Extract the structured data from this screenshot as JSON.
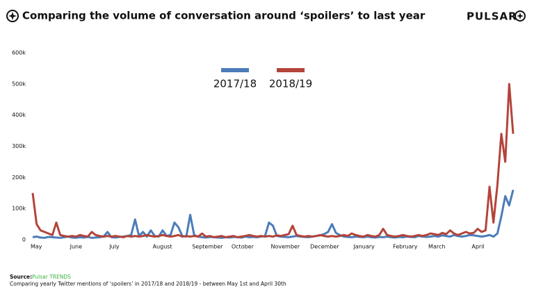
{
  "chart_data": {
    "type": "line",
    "title": "Comparing the volume of conversation around ‘spoilers’ to last year",
    "brand": "PULSAR",
    "source_label": "Source:",
    "source": "Pulsar TRENDS",
    "caption": "Comparing yearly Twitter mentions of ‘spoilers’ in 2017/18 and 2018/19 - between May 1st and April 30th",
    "categories": [
      "May",
      null,
      null,
      null,
      null,
      null,
      null,
      null,
      null,
      null,
      "June",
      null,
      null,
      null,
      null,
      null,
      null,
      null,
      null,
      null,
      "July",
      null,
      null,
      null,
      null,
      null,
      null,
      null,
      null,
      null,
      null,
      "August",
      null,
      null,
      null,
      null,
      null,
      null,
      null,
      null,
      null,
      "September",
      null,
      null,
      null,
      null,
      null,
      null,
      null,
      null,
      null,
      "October",
      null,
      null,
      null,
      null,
      null,
      null,
      null,
      null,
      null,
      "November",
      null,
      null,
      null,
      null,
      null,
      null,
      null,
      null,
      null,
      "December",
      null,
      null,
      null,
      null,
      null,
      null,
      null,
      null,
      null,
      null,
      "January",
      null,
      null,
      null,
      null,
      null,
      null,
      null,
      null,
      null,
      "February",
      null,
      null,
      null,
      null,
      null,
      null,
      null,
      null,
      "March",
      null,
      null,
      null,
      null,
      null,
      null,
      null,
      null,
      null,
      null,
      "April",
      null,
      null,
      null,
      null,
      null,
      null,
      null,
      null,
      null,
      null
    ],
    "series": [
      {
        "name": "2017/18",
        "color": "#4a7cb8",
        "values": [
          8000,
          10000,
          7000,
          6000,
          9000,
          8000,
          7000,
          6000,
          8000,
          10000,
          7000,
          6000,
          8000,
          7000,
          9000,
          6000,
          7000,
          8000,
          10000,
          25000,
          8000,
          7000,
          9000,
          10000,
          12000,
          15000,
          65000,
          12000,
          25000,
          10000,
          30000,
          12000,
          10000,
          30000,
          12000,
          15000,
          55000,
          40000,
          12000,
          10000,
          80000,
          15000,
          10000,
          8000,
          7000,
          9000,
          8000,
          7000,
          6000,
          8000,
          7000,
          9000,
          8000,
          7000,
          10000,
          8000,
          9000,
          8000,
          10000,
          12000,
          55000,
          45000,
          12000,
          10000,
          9000,
          8000,
          10000,
          12000,
          10000,
          9000,
          8000,
          10000,
          12000,
          14000,
          18000,
          25000,
          50000,
          22000,
          15000,
          10000,
          9000,
          8000,
          10000,
          9000,
          8000,
          10000,
          8000,
          7000,
          9000,
          8000,
          10000,
          8000,
          7000,
          9000,
          8000,
          10000,
          9000,
          8000,
          12000,
          10000,
          9000,
          10000,
          12000,
          10000,
          14000,
          12000,
          10000,
          15000,
          12000,
          10000,
          12000,
          15000,
          14000,
          12000,
          10000,
          12000,
          15000,
          10000,
          20000,
          75000,
          140000,
          110000,
          160000
        ]
      },
      {
        "name": "2018/19",
        "color": "#b3443a",
        "values": [
          150000,
          50000,
          30000,
          25000,
          20000,
          15000,
          55000,
          15000,
          12000,
          10000,
          12000,
          10000,
          15000,
          12000,
          10000,
          25000,
          15000,
          12000,
          10000,
          12000,
          10000,
          12000,
          10000,
          8000,
          12000,
          10000,
          12000,
          10000,
          12000,
          15000,
          12000,
          10000,
          12000,
          15000,
          12000,
          10000,
          12000,
          15000,
          10000,
          12000,
          10000,
          12000,
          10000,
          20000,
          10000,
          12000,
          8000,
          10000,
          12000,
          8000,
          10000,
          12000,
          8000,
          10000,
          12000,
          15000,
          12000,
          10000,
          12000,
          10000,
          12000,
          10000,
          14000,
          12000,
          15000,
          18000,
          45000,
          15000,
          12000,
          10000,
          12000,
          10000,
          12000,
          15000,
          12000,
          10000,
          12000,
          10000,
          12000,
          15000,
          12000,
          20000,
          15000,
          12000,
          10000,
          15000,
          12000,
          10000,
          15000,
          35000,
          15000,
          12000,
          10000,
          12000,
          15000,
          12000,
          10000,
          12000,
          15000,
          12000,
          15000,
          20000,
          18000,
          15000,
          22000,
          18000,
          30000,
          20000,
          15000,
          20000,
          25000,
          20000,
          22000,
          35000,
          25000,
          30000,
          170000,
          55000,
          175000,
          340000,
          250000,
          500000,
          340000
        ]
      }
    ],
    "ylim": [
      0,
      600000
    ],
    "yticks": [
      0,
      {
        "value": 100000,
        "label": "100k"
      },
      {
        "value": 200000,
        "label": "200k"
      },
      {
        "value": 300000,
        "label": "300k"
      },
      {
        "value": 400000,
        "label": "400k"
      },
      {
        "value": 500000,
        "label": "500k"
      },
      {
        "value": 600000,
        "label": "600k"
      }
    ],
    "grid": false
  }
}
